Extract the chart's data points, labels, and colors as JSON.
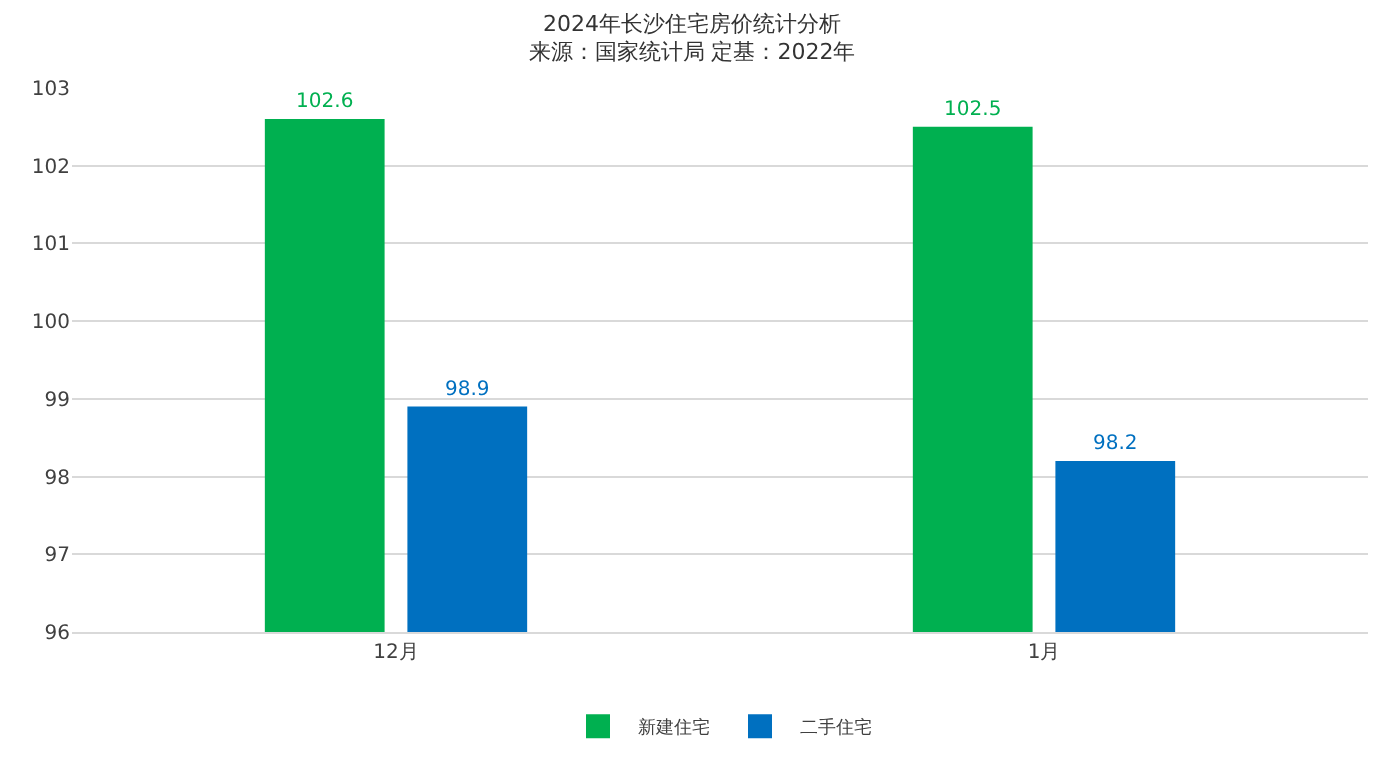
{
  "chart_data": {
    "type": "bar",
    "title": "2024年长沙住宅房价统计分析",
    "subtitle": "来源：国家统计局 定基：2022年",
    "categories": [
      "12月",
      "1月"
    ],
    "series": [
      {
        "name": "新建住宅",
        "color": "#00b050",
        "values": [
          102.6,
          102.5
        ]
      },
      {
        "name": "二手住宅",
        "color": "#0070c0",
        "values": [
          98.9,
          98.2
        ]
      }
    ],
    "ylim": [
      96,
      103
    ],
    "yticks": [
      96,
      97,
      98,
      99,
      100,
      101,
      102,
      103
    ],
    "grid": "y",
    "legend": "bottom",
    "data_labels": true
  }
}
